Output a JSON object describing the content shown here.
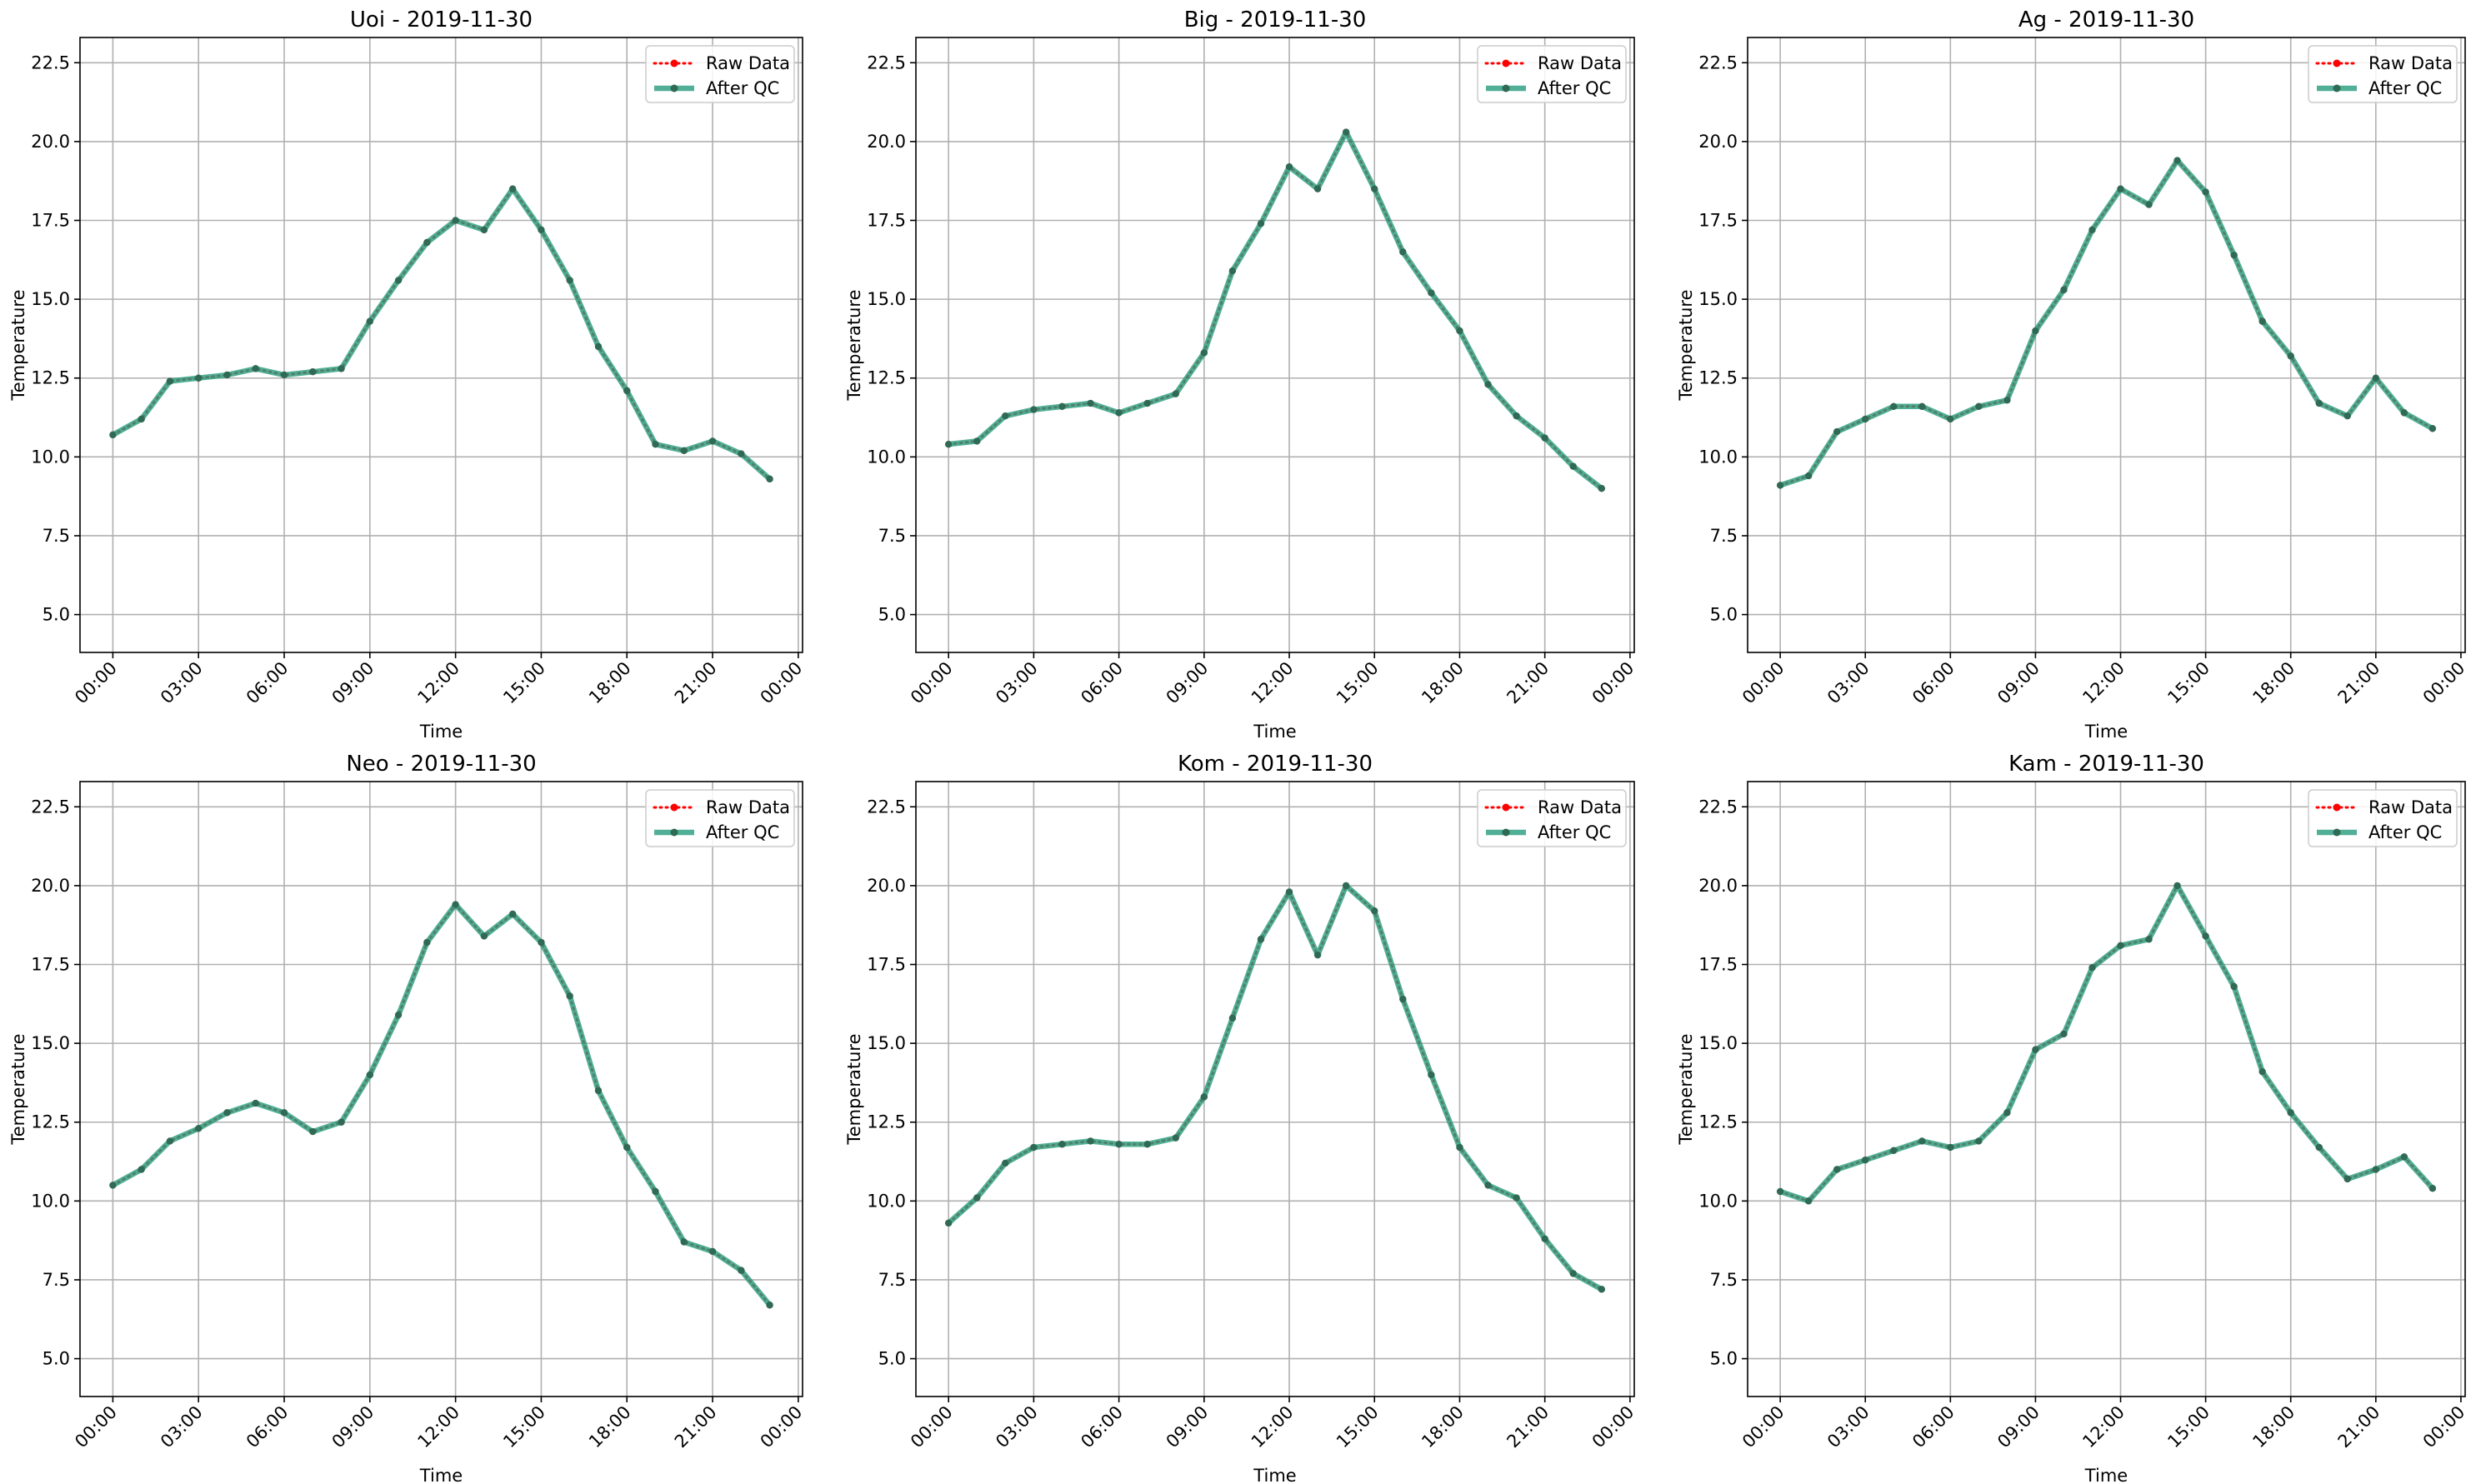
{
  "colors": {
    "raw": "#ff0000",
    "qc": "#2a9d7f",
    "grid": "#b0b0b0",
    "axis": "#000000",
    "marker_overlap": "#2f6a55"
  },
  "chart_data": [
    {
      "type": "line",
      "title": "Uoi - 2019-11-30",
      "xlabel": "Time",
      "ylabel": "Temperature",
      "ylim": [
        3.8,
        23.3
      ],
      "yticks": [
        5.0,
        7.5,
        10.0,
        12.5,
        15.0,
        17.5,
        20.0,
        22.5
      ],
      "ytick_labels": [
        "5.0",
        "7.5",
        "10.0",
        "12.5",
        "15.0",
        "17.5",
        "20.0",
        "22.5"
      ],
      "xlim": [
        -1.15,
        24.15
      ],
      "xticks": [
        0,
        3,
        6,
        9,
        12,
        15,
        18,
        21,
        24
      ],
      "xtick_labels": [
        "00:00",
        "03:00",
        "06:00",
        "09:00",
        "12:00",
        "15:00",
        "18:00",
        "21:00",
        "00:00"
      ],
      "grid": true,
      "legend_position": "top-right",
      "x": [
        0,
        1,
        2,
        3,
        4,
        5,
        6,
        7,
        8,
        9,
        10,
        11,
        12,
        13,
        14,
        15,
        16,
        17,
        18,
        19,
        20,
        21,
        22,
        23
      ],
      "series": [
        {
          "name": "Raw Data",
          "values": [
            10.7,
            11.2,
            12.4,
            12.5,
            12.6,
            12.8,
            12.6,
            12.7,
            12.8,
            14.3,
            15.6,
            16.8,
            17.5,
            17.2,
            18.5,
            17.2,
            15.6,
            13.5,
            12.1,
            10.4,
            10.2,
            10.5,
            10.1,
            9.3
          ]
        },
        {
          "name": "After QC",
          "values": [
            10.7,
            11.2,
            12.4,
            12.5,
            12.6,
            12.8,
            12.6,
            12.7,
            12.8,
            14.3,
            15.6,
            16.8,
            17.5,
            17.2,
            18.5,
            17.2,
            15.6,
            13.5,
            12.1,
            10.4,
            10.2,
            10.5,
            10.1,
            9.3
          ]
        }
      ]
    },
    {
      "type": "line",
      "title": "Big - 2019-11-30",
      "xlabel": "Time",
      "ylabel": "Temperature",
      "ylim": [
        3.8,
        23.3
      ],
      "yticks": [
        5.0,
        7.5,
        10.0,
        12.5,
        15.0,
        17.5,
        20.0,
        22.5
      ],
      "ytick_labels": [
        "5.0",
        "7.5",
        "10.0",
        "12.5",
        "15.0",
        "17.5",
        "20.0",
        "22.5"
      ],
      "xlim": [
        -1.15,
        24.15
      ],
      "xticks": [
        0,
        3,
        6,
        9,
        12,
        15,
        18,
        21,
        24
      ],
      "xtick_labels": [
        "00:00",
        "03:00",
        "06:00",
        "09:00",
        "12:00",
        "15:00",
        "18:00",
        "21:00",
        "00:00"
      ],
      "grid": true,
      "legend_position": "top-right",
      "x": [
        0,
        1,
        2,
        3,
        4,
        5,
        6,
        7,
        8,
        9,
        10,
        11,
        12,
        13,
        14,
        15,
        16,
        17,
        18,
        19,
        20,
        21,
        22,
        23
      ],
      "series": [
        {
          "name": "Raw Data",
          "values": [
            10.4,
            10.5,
            11.3,
            11.5,
            11.6,
            11.7,
            11.4,
            11.7,
            12.0,
            13.3,
            15.9,
            17.4,
            19.2,
            18.5,
            20.3,
            18.5,
            16.5,
            15.2,
            14.0,
            12.3,
            11.3,
            10.6,
            9.7,
            9.0
          ]
        },
        {
          "name": "After QC",
          "values": [
            10.4,
            10.5,
            11.3,
            11.5,
            11.6,
            11.7,
            11.4,
            11.7,
            12.0,
            13.3,
            15.9,
            17.4,
            19.2,
            18.5,
            20.3,
            18.5,
            16.5,
            15.2,
            14.0,
            12.3,
            11.3,
            10.6,
            9.7,
            9.0
          ]
        }
      ]
    },
    {
      "type": "line",
      "title": "Ag - 2019-11-30",
      "xlabel": "Time",
      "ylabel": "Temperature",
      "ylim": [
        3.8,
        23.3
      ],
      "yticks": [
        5.0,
        7.5,
        10.0,
        12.5,
        15.0,
        17.5,
        20.0,
        22.5
      ],
      "ytick_labels": [
        "5.0",
        "7.5",
        "10.0",
        "12.5",
        "15.0",
        "17.5",
        "20.0",
        "22.5"
      ],
      "xlim": [
        -1.15,
        24.15
      ],
      "xticks": [
        0,
        3,
        6,
        9,
        12,
        15,
        18,
        21,
        24
      ],
      "xtick_labels": [
        "00:00",
        "03:00",
        "06:00",
        "09:00",
        "12:00",
        "15:00",
        "18:00",
        "21:00",
        "00:00"
      ],
      "grid": true,
      "legend_position": "top-right",
      "x": [
        0,
        1,
        2,
        3,
        4,
        5,
        6,
        7,
        8,
        9,
        10,
        11,
        12,
        13,
        14,
        15,
        16,
        17,
        18,
        19,
        20,
        21,
        22,
        23
      ],
      "series": [
        {
          "name": "Raw Data",
          "values": [
            9.1,
            9.4,
            10.8,
            11.2,
            11.6,
            11.6,
            11.2,
            11.6,
            11.8,
            14.0,
            15.3,
            17.2,
            18.5,
            18.0,
            19.4,
            18.4,
            16.4,
            14.3,
            13.2,
            11.7,
            11.3,
            12.5,
            11.4,
            10.9
          ]
        },
        {
          "name": "After QC",
          "values": [
            9.1,
            9.4,
            10.8,
            11.2,
            11.6,
            11.6,
            11.2,
            11.6,
            11.8,
            14.0,
            15.3,
            17.2,
            18.5,
            18.0,
            19.4,
            18.4,
            16.4,
            14.3,
            13.2,
            11.7,
            11.3,
            12.5,
            11.4,
            10.9
          ]
        }
      ]
    },
    {
      "type": "line",
      "title": "Neo - 2019-11-30",
      "xlabel": "Time",
      "ylabel": "Temperature",
      "ylim": [
        3.8,
        23.3
      ],
      "yticks": [
        5.0,
        7.5,
        10.0,
        12.5,
        15.0,
        17.5,
        20.0,
        22.5
      ],
      "ytick_labels": [
        "5.0",
        "7.5",
        "10.0",
        "12.5",
        "15.0",
        "17.5",
        "20.0",
        "22.5"
      ],
      "xlim": [
        -1.15,
        24.15
      ],
      "xticks": [
        0,
        3,
        6,
        9,
        12,
        15,
        18,
        21,
        24
      ],
      "xtick_labels": [
        "00:00",
        "03:00",
        "06:00",
        "09:00",
        "12:00",
        "15:00",
        "18:00",
        "21:00",
        "00:00"
      ],
      "grid": true,
      "legend_position": "top-right",
      "x": [
        0,
        1,
        2,
        3,
        4,
        5,
        6,
        7,
        8,
        9,
        10,
        11,
        12,
        13,
        14,
        15,
        16,
        17,
        18,
        19,
        20,
        21,
        22,
        23
      ],
      "series": [
        {
          "name": "Raw Data",
          "values": [
            10.5,
            11.0,
            11.9,
            12.3,
            12.8,
            13.1,
            12.8,
            12.2,
            12.5,
            14.0,
            15.9,
            18.2,
            19.4,
            18.4,
            19.1,
            18.2,
            16.5,
            13.5,
            11.7,
            10.3,
            8.7,
            8.4,
            7.8,
            6.7
          ]
        },
        {
          "name": "After QC",
          "values": [
            10.5,
            11.0,
            11.9,
            12.3,
            12.8,
            13.1,
            12.8,
            12.2,
            12.5,
            14.0,
            15.9,
            18.2,
            19.4,
            18.4,
            19.1,
            18.2,
            16.5,
            13.5,
            11.7,
            10.3,
            8.7,
            8.4,
            7.8,
            6.7
          ]
        }
      ]
    },
    {
      "type": "line",
      "title": "Kom - 2019-11-30",
      "xlabel": "Time",
      "ylabel": "Temperature",
      "ylim": [
        3.8,
        23.3
      ],
      "yticks": [
        5.0,
        7.5,
        10.0,
        12.5,
        15.0,
        17.5,
        20.0,
        22.5
      ],
      "ytick_labels": [
        "5.0",
        "7.5",
        "10.0",
        "12.5",
        "15.0",
        "17.5",
        "20.0",
        "22.5"
      ],
      "xlim": [
        -1.15,
        24.15
      ],
      "xticks": [
        0,
        3,
        6,
        9,
        12,
        15,
        18,
        21,
        24
      ],
      "xtick_labels": [
        "00:00",
        "03:00",
        "06:00",
        "09:00",
        "12:00",
        "15:00",
        "18:00",
        "21:00",
        "00:00"
      ],
      "grid": true,
      "legend_position": "top-right",
      "x": [
        0,
        1,
        2,
        3,
        4,
        5,
        6,
        7,
        8,
        9,
        10,
        11,
        12,
        13,
        14,
        15,
        16,
        17,
        18,
        19,
        20,
        21,
        22,
        23
      ],
      "series": [
        {
          "name": "Raw Data",
          "values": [
            9.3,
            10.1,
            11.2,
            11.7,
            11.8,
            11.9,
            11.8,
            11.8,
            12.0,
            13.3,
            15.8,
            18.3,
            19.8,
            17.8,
            20.0,
            19.2,
            16.4,
            14.0,
            11.7,
            10.5,
            10.1,
            8.8,
            7.7,
            7.2
          ]
        },
        {
          "name": "After QC",
          "values": [
            9.3,
            10.1,
            11.2,
            11.7,
            11.8,
            11.9,
            11.8,
            11.8,
            12.0,
            13.3,
            15.8,
            18.3,
            19.8,
            17.8,
            20.0,
            19.2,
            16.4,
            14.0,
            11.7,
            10.5,
            10.1,
            8.8,
            7.7,
            7.2
          ]
        }
      ]
    },
    {
      "type": "line",
      "title": "Kam - 2019-11-30",
      "xlabel": "Time",
      "ylabel": "Temperature",
      "ylim": [
        3.8,
        23.3
      ],
      "yticks": [
        5.0,
        7.5,
        10.0,
        12.5,
        15.0,
        17.5,
        20.0,
        22.5
      ],
      "ytick_labels": [
        "5.0",
        "7.5",
        "10.0",
        "12.5",
        "15.0",
        "17.5",
        "20.0",
        "22.5"
      ],
      "xlim": [
        -1.15,
        24.15
      ],
      "xticks": [
        0,
        3,
        6,
        9,
        12,
        15,
        18,
        21,
        24
      ],
      "xtick_labels": [
        "00:00",
        "03:00",
        "06:00",
        "09:00",
        "12:00",
        "15:00",
        "18:00",
        "21:00",
        "00:00"
      ],
      "grid": true,
      "legend_position": "top-right",
      "x": [
        0,
        1,
        2,
        3,
        4,
        5,
        6,
        7,
        8,
        9,
        10,
        11,
        12,
        13,
        14,
        15,
        16,
        17,
        18,
        19,
        20,
        21,
        22,
        23
      ],
      "series": [
        {
          "name": "Raw Data",
          "values": [
            10.3,
            10.0,
            11.0,
            11.3,
            11.6,
            11.9,
            11.7,
            11.9,
            12.8,
            14.8,
            15.3,
            17.4,
            18.1,
            18.3,
            20.0,
            18.4,
            16.8,
            14.1,
            12.8,
            11.7,
            10.7,
            11.0,
            11.4,
            10.4
          ]
        },
        {
          "name": "After QC",
          "values": [
            10.3,
            10.0,
            11.0,
            11.3,
            11.6,
            11.9,
            11.7,
            11.9,
            12.8,
            14.8,
            15.3,
            17.4,
            18.1,
            18.3,
            20.0,
            18.4,
            16.8,
            14.1,
            12.8,
            11.7,
            10.7,
            11.0,
            11.4,
            10.4
          ]
        }
      ]
    }
  ]
}
